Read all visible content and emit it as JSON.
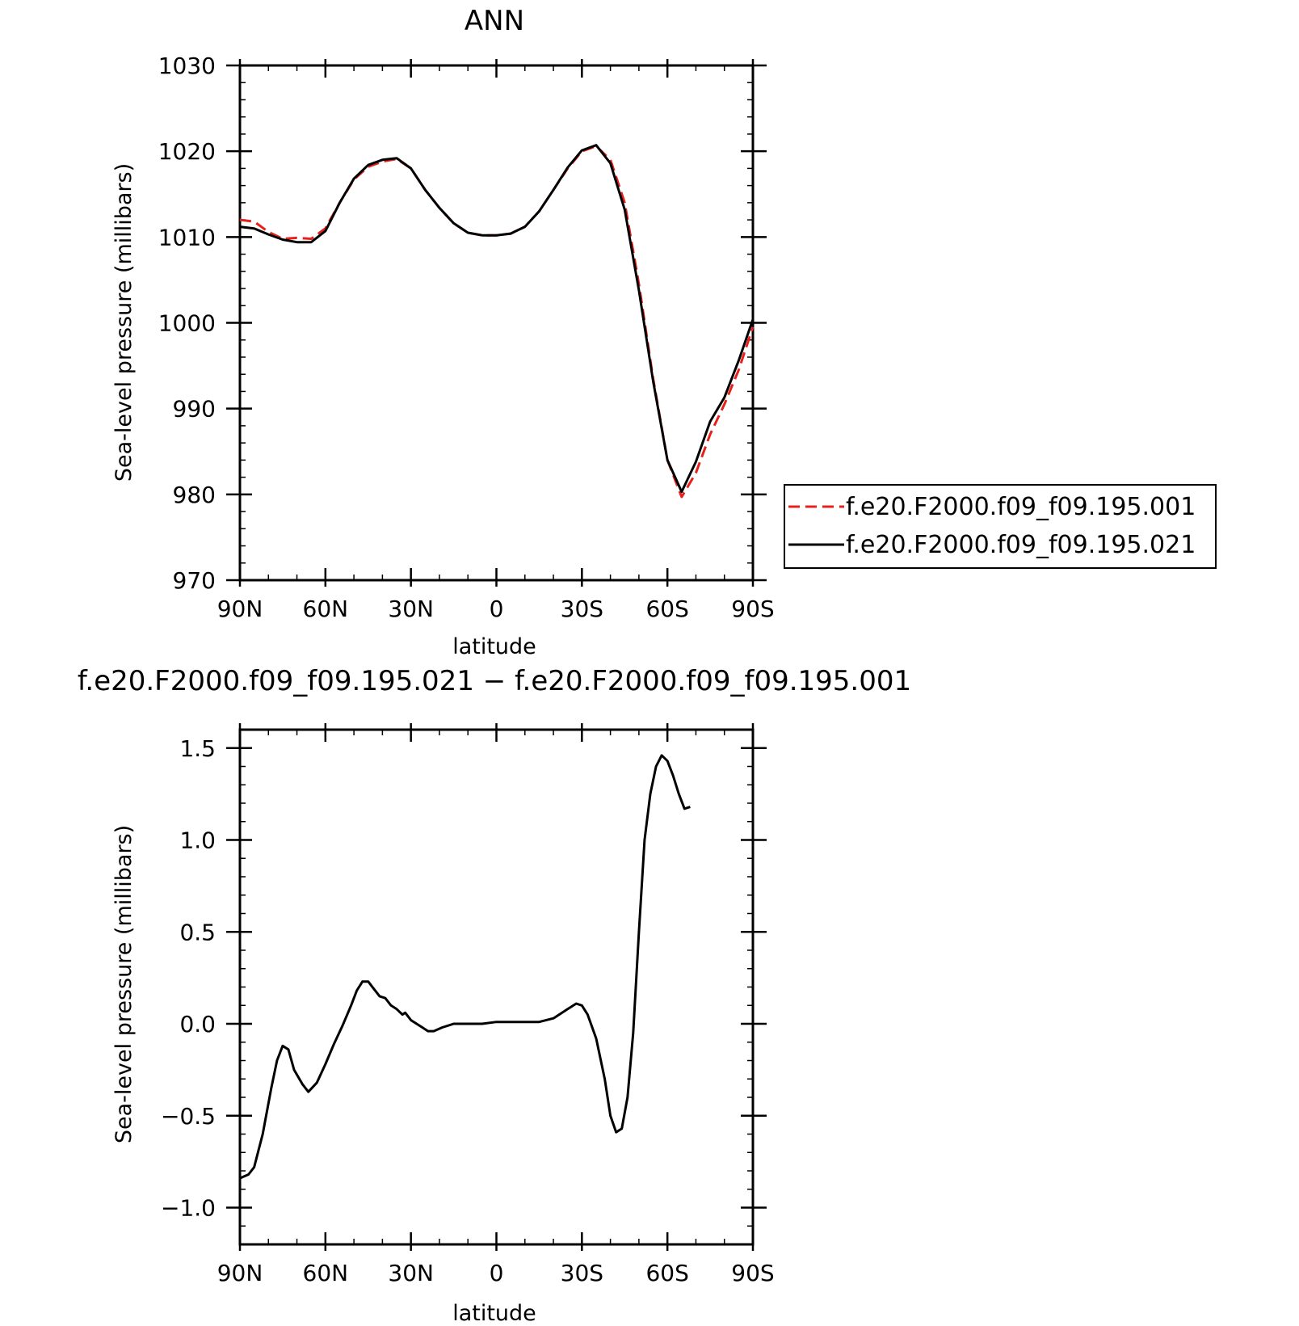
{
  "chart_data": [
    {
      "type": "line",
      "title": "ANN",
      "xlabel": "latitude",
      "ylabel": "Sea-level pressure (millibars)",
      "xlim": [
        90,
        -90
      ],
      "ylim": [
        970,
        1030
      ],
      "xticks": [
        {
          "value": 90,
          "label": "90N"
        },
        {
          "value": 60,
          "label": "60N"
        },
        {
          "value": 30,
          "label": "30N"
        },
        {
          "value": 0,
          "label": "0"
        },
        {
          "value": -30,
          "label": "30S"
        },
        {
          "value": -60,
          "label": "60S"
        },
        {
          "value": -90,
          "label": "90S"
        }
      ],
      "yticks": [
        {
          "value": 1030,
          "label": "1030"
        },
        {
          "value": 1020,
          "label": "1020"
        },
        {
          "value": 1010,
          "label": "1010"
        },
        {
          "value": 1000,
          "label": "1000"
        },
        {
          "value": 990,
          "label": "990"
        },
        {
          "value": 980,
          "label": "980"
        },
        {
          "value": 970,
          "label": "970"
        }
      ],
      "legend_position": "right",
      "series": [
        {
          "name": "f.e20.F2000.f09_f09.195.001",
          "color": "#e8201c",
          "dash": "dashed",
          "points": [
            [
              90,
              1012.0
            ],
            [
              85,
              1011.8
            ],
            [
              80,
              1010.6
            ],
            [
              75,
              1009.8
            ],
            [
              70,
              1009.9
            ],
            [
              65,
              1009.8
            ],
            [
              60,
              1011.0
            ],
            [
              55,
              1014.0
            ],
            [
              50,
              1016.7
            ],
            [
              45,
              1018.2
            ],
            [
              40,
              1018.8
            ],
            [
              35,
              1019.1
            ],
            [
              30,
              1018.0
            ],
            [
              25,
              1015.5
            ],
            [
              20,
              1013.4
            ],
            [
              15,
              1011.6
            ],
            [
              10,
              1010.5
            ],
            [
              5,
              1010.2
            ],
            [
              0,
              1010.2
            ],
            [
              -5,
              1010.4
            ],
            [
              -10,
              1011.2
            ],
            [
              -15,
              1013.0
            ],
            [
              -20,
              1015.5
            ],
            [
              -25,
              1018.0
            ],
            [
              -30,
              1020.0
            ],
            [
              -35,
              1020.6
            ],
            [
              -40,
              1019.0
            ],
            [
              -45,
              1014.0
            ],
            [
              -50,
              1004.5
            ],
            [
              -55,
              993.5
            ],
            [
              -60,
              984.0
            ],
            [
              -65,
              979.7
            ],
            [
              -70,
              982.5
            ],
            [
              -75,
              987.0
            ],
            [
              -80,
              990.5
            ],
            [
              -85,
              994.5
            ],
            [
              -90,
              999.5
            ]
          ]
        },
        {
          "name": "f.e20.F2000.f09_f09.195.021",
          "color": "#000000",
          "dash": "solid",
          "points": [
            [
              90,
              1011.2
            ],
            [
              85,
              1011.0
            ],
            [
              80,
              1010.3
            ],
            [
              75,
              1009.7
            ],
            [
              70,
              1009.4
            ],
            [
              65,
              1009.4
            ],
            [
              60,
              1010.7
            ],
            [
              55,
              1014.0
            ],
            [
              50,
              1016.8
            ],
            [
              45,
              1018.4
            ],
            [
              40,
              1019.0
            ],
            [
              35,
              1019.2
            ],
            [
              30,
              1018.0
            ],
            [
              25,
              1015.5
            ],
            [
              20,
              1013.4
            ],
            [
              15,
              1011.6
            ],
            [
              10,
              1010.5
            ],
            [
              5,
              1010.2
            ],
            [
              0,
              1010.2
            ],
            [
              -5,
              1010.4
            ],
            [
              -10,
              1011.2
            ],
            [
              -15,
              1013.0
            ],
            [
              -20,
              1015.5
            ],
            [
              -25,
              1018.1
            ],
            [
              -30,
              1020.1
            ],
            [
              -35,
              1020.7
            ],
            [
              -40,
              1018.6
            ],
            [
              -45,
              1013.2
            ],
            [
              -50,
              1003.8
            ],
            [
              -55,
              993.2
            ],
            [
              -60,
              984.0
            ],
            [
              -65,
              980.3
            ],
            [
              -70,
              983.8
            ],
            [
              -75,
              988.5
            ],
            [
              -80,
              991.3
            ],
            [
              -85,
              995.6
            ],
            [
              -90,
              1000.4
            ]
          ]
        }
      ]
    },
    {
      "type": "line",
      "title": "f.e20.F2000.f09_f09.195.021 − f.e20.F2000.f09_f09.195.001",
      "xlabel": "latitude",
      "ylabel": "Sea-level pressure (millibars)",
      "xlim": [
        90,
        -90
      ],
      "ylim": [
        -1.2,
        1.6
      ],
      "xticks": [
        {
          "value": 90,
          "label": "90N"
        },
        {
          "value": 60,
          "label": "60N"
        },
        {
          "value": 30,
          "label": "30N"
        },
        {
          "value": 0,
          "label": "0"
        },
        {
          "value": -30,
          "label": "30S"
        },
        {
          "value": -60,
          "label": "60S"
        },
        {
          "value": -90,
          "label": "90S"
        }
      ],
      "yticks": [
        {
          "value": 1.5,
          "label": "1.5"
        },
        {
          "value": 1.0,
          "label": "1.0"
        },
        {
          "value": 0.5,
          "label": "0.5"
        },
        {
          "value": 0.0,
          "label": "0.0"
        },
        {
          "value": -0.5,
          "label": "−0.5"
        },
        {
          "value": -1.0,
          "label": "−1.0"
        }
      ],
      "series": [
        {
          "color": "#000000",
          "dash": "solid",
          "points": [
            [
              90,
              -0.84
            ],
            [
              87,
              -0.82
            ],
            [
              85,
              -0.78
            ],
            [
              82,
              -0.6
            ],
            [
              79,
              -0.35
            ],
            [
              77,
              -0.2
            ],
            [
              75,
              -0.12
            ],
            [
              73,
              -0.14
            ],
            [
              71,
              -0.25
            ],
            [
              68,
              -0.33
            ],
            [
              66,
              -0.37
            ],
            [
              63,
              -0.32
            ],
            [
              60,
              -0.22
            ],
            [
              57,
              -0.11
            ],
            [
              54,
              -0.01
            ],
            [
              51,
              0.1
            ],
            [
              49,
              0.18
            ],
            [
              47,
              0.23
            ],
            [
              45,
              0.23
            ],
            [
              43,
              0.19
            ],
            [
              41,
              0.15
            ],
            [
              39,
              0.14
            ],
            [
              37,
              0.1
            ],
            [
              35,
              0.08
            ],
            [
              33,
              0.05
            ],
            [
              32,
              0.06
            ],
            [
              30,
              0.02
            ],
            [
              28,
              0.0
            ],
            [
              26,
              -0.02
            ],
            [
              24,
              -0.04
            ],
            [
              22,
              -0.04
            ],
            [
              19,
              -0.02
            ],
            [
              15,
              0.0
            ],
            [
              10,
              0.0
            ],
            [
              5,
              0.0
            ],
            [
              0,
              0.01
            ],
            [
              -5,
              0.01
            ],
            [
              -10,
              0.01
            ],
            [
              -15,
              0.01
            ],
            [
              -20,
              0.03
            ],
            [
              -25,
              0.08
            ],
            [
              -28,
              0.11
            ],
            [
              -30,
              0.1
            ],
            [
              -32,
              0.05
            ],
            [
              -35,
              -0.08
            ],
            [
              -38,
              -0.3
            ],
            [
              -40,
              -0.5
            ],
            [
              -42,
              -0.59
            ],
            [
              -44,
              -0.57
            ],
            [
              -46,
              -0.4
            ],
            [
              -48,
              -0.05
            ],
            [
              -50,
              0.5
            ],
            [
              -52,
              1.0
            ],
            [
              -54,
              1.25
            ],
            [
              -56,
              1.4
            ],
            [
              -58,
              1.46
            ],
            [
              -60,
              1.43
            ],
            [
              -62,
              1.35
            ],
            [
              -64,
              1.25
            ],
            [
              -66,
              1.17
            ],
            [
              -68,
              1.18
            ]
          ]
        }
      ]
    }
  ]
}
